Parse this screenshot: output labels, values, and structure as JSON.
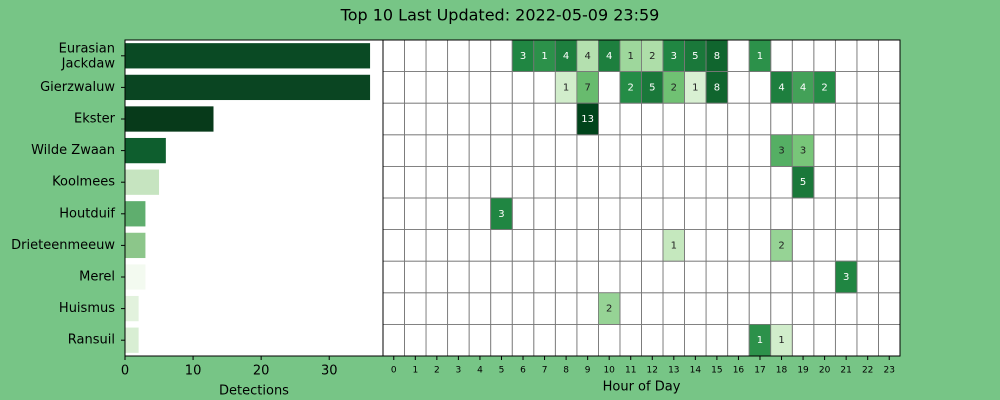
{
  "title": "Top 10 Last Updated: 2022-05-09 23:59",
  "chart_data": [
    {
      "type": "bar",
      "orientation": "horizontal",
      "categories": [
        "Eurasian\nJackdaw",
        "Gierzwaluw",
        "Ekster",
        "Wilde Zwaan",
        "Koolmees",
        "Houtduif",
        "Drieteenmeeuw",
        "Merel",
        "Huismus",
        "Ransuil"
      ],
      "values": [
        36,
        36,
        13,
        6,
        5,
        3,
        3,
        3,
        2,
        2
      ],
      "colors": [
        "#0a4a24",
        "#0a4522",
        "#073a1a",
        "#0e5e2e",
        "#c6e4c0",
        "#5fae6e",
        "#8cc68a",
        "#f3faf0",
        "#e2f2dd",
        "#d8eed3"
      ],
      "xlim": [
        0,
        37.9
      ],
      "xticks": [
        0,
        10,
        20,
        30
      ],
      "xlabel": "Detections"
    },
    {
      "type": "heatmap",
      "xlabel": "Hour of Day",
      "x": [
        0,
        1,
        2,
        3,
        4,
        5,
        6,
        7,
        8,
        9,
        10,
        11,
        12,
        13,
        14,
        15,
        16,
        17,
        18,
        19,
        20,
        21,
        22,
        23
      ],
      "values": [
        [
          null,
          null,
          null,
          null,
          null,
          null,
          3,
          1,
          4,
          4,
          4,
          1,
          2,
          3,
          5,
          8,
          null,
          1,
          null,
          null,
          null,
          null,
          null,
          null
        ],
        [
          null,
          null,
          null,
          null,
          null,
          null,
          null,
          null,
          1,
          7,
          null,
          2,
          5,
          2,
          1,
          8,
          null,
          null,
          4,
          4,
          2,
          null,
          null,
          null
        ],
        [
          null,
          null,
          null,
          null,
          null,
          null,
          null,
          null,
          null,
          13,
          null,
          null,
          null,
          null,
          null,
          null,
          null,
          null,
          null,
          null,
          null,
          null,
          null,
          null
        ],
        [
          null,
          null,
          null,
          null,
          null,
          null,
          null,
          null,
          null,
          null,
          null,
          null,
          null,
          null,
          null,
          null,
          null,
          null,
          3,
          3,
          null,
          null,
          null,
          null
        ],
        [
          null,
          null,
          null,
          null,
          null,
          null,
          null,
          null,
          null,
          null,
          null,
          null,
          null,
          null,
          null,
          null,
          null,
          null,
          null,
          5,
          null,
          null,
          null,
          null
        ],
        [
          null,
          null,
          null,
          null,
          null,
          3,
          null,
          null,
          null,
          null,
          null,
          null,
          null,
          null,
          null,
          null,
          null,
          null,
          null,
          null,
          null,
          null,
          null,
          null
        ],
        [
          null,
          null,
          null,
          null,
          null,
          null,
          null,
          null,
          null,
          null,
          null,
          null,
          null,
          1,
          null,
          null,
          null,
          null,
          2,
          null,
          null,
          null,
          null,
          null
        ],
        [
          null,
          null,
          null,
          null,
          null,
          null,
          null,
          null,
          null,
          null,
          null,
          null,
          null,
          null,
          null,
          null,
          null,
          null,
          null,
          null,
          null,
          3,
          null,
          null
        ],
        [
          null,
          null,
          null,
          null,
          null,
          null,
          null,
          null,
          null,
          null,
          2,
          null,
          null,
          null,
          null,
          null,
          null,
          null,
          null,
          null,
          null,
          null,
          null,
          null
        ],
        [
          null,
          null,
          null,
          null,
          null,
          null,
          null,
          null,
          null,
          null,
          null,
          null,
          null,
          null,
          null,
          null,
          null,
          1,
          1,
          null,
          null,
          null,
          null,
          null
        ]
      ]
    }
  ]
}
